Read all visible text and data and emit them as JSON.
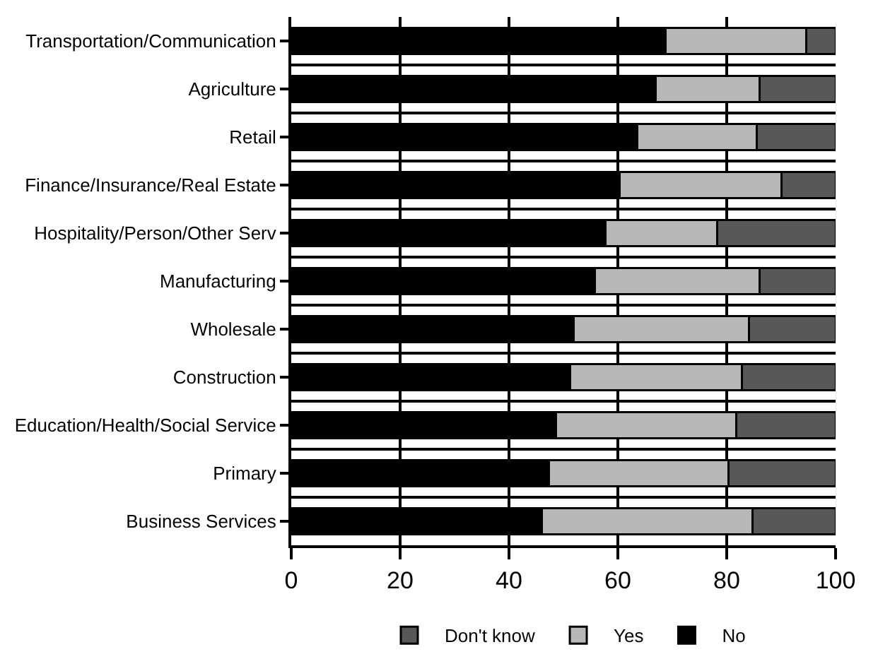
{
  "chart_data": {
    "type": "bar",
    "orientation": "horizontal",
    "stacked": true,
    "categories": [
      "Transportation/Communication",
      "Agriculture",
      "Retail",
      "Finance/Insurance/Real Estate",
      "Hospitality/Person/Other Serv",
      "Manufacturing",
      "Wholesale",
      "Construction",
      "Education/Health/Social Service",
      "Primary",
      "Business Services"
    ],
    "series": [
      {
        "name": "No",
        "color": "#000000",
        "values": [
          68.8,
          66.9,
          63.6,
          60.3,
          57.7,
          55.8,
          51.9,
          51.2,
          48.6,
          47.3,
          46.0
        ]
      },
      {
        "name": "Yes",
        "color": "#b8b8b8",
        "values": [
          25.8,
          19.2,
          21.9,
          29.7,
          20.5,
          30.3,
          32.2,
          31.6,
          33.1,
          33.0,
          38.7
        ]
      },
      {
        "name": "Don't know",
        "color": "#585858",
        "values": [
          5.4,
          13.9,
          14.5,
          10.0,
          21.8,
          13.9,
          15.9,
          17.2,
          18.3,
          19.7,
          15.3
        ]
      }
    ],
    "xlim": [
      0,
      100
    ],
    "xticks": [
      0,
      20,
      40,
      60,
      80,
      100
    ],
    "grid": true,
    "legend": "bottom"
  }
}
